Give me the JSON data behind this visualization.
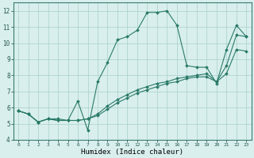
{
  "title": "",
  "xlabel": "Humidex (Indice chaleur)",
  "ylabel": "",
  "xlim": [
    -0.5,
    23.5
  ],
  "ylim": [
    4,
    12.5
  ],
  "yticks": [
    4,
    5,
    6,
    7,
    8,
    9,
    10,
    11,
    12
  ],
  "xticks": [
    0,
    1,
    2,
    3,
    4,
    5,
    6,
    7,
    8,
    9,
    10,
    11,
    12,
    13,
    14,
    15,
    16,
    17,
    18,
    19,
    20,
    21,
    22,
    23
  ],
  "line_color": "#2a7a68",
  "bg_color": "#d8efed",
  "grid_color": "#aacfca",
  "series": [
    {
      "x": [
        0,
        1,
        2,
        3,
        4,
        5,
        6,
        7,
        8,
        9,
        10,
        11,
        12,
        13,
        14,
        15,
        16,
        17,
        18,
        19,
        20,
        21,
        22,
        23
      ],
      "y": [
        5.8,
        5.6,
        5.1,
        5.3,
        5.3,
        5.2,
        6.4,
        4.6,
        7.6,
        8.8,
        10.2,
        10.4,
        10.8,
        11.9,
        11.9,
        12.0,
        11.1,
        8.6,
        8.5,
        8.5,
        7.5,
        9.6,
        11.1,
        10.4
      ]
    },
    {
      "x": [
        0,
        1,
        2,
        3,
        4,
        5,
        6,
        7,
        8,
        9,
        10,
        11,
        12,
        13,
        14,
        15,
        16,
        17,
        18,
        19,
        20,
        21,
        22,
        23
      ],
      "y": [
        5.8,
        5.6,
        5.1,
        5.3,
        5.2,
        5.2,
        5.2,
        5.3,
        5.6,
        6.1,
        6.5,
        6.8,
        7.1,
        7.3,
        7.5,
        7.6,
        7.8,
        7.9,
        8.0,
        8.1,
        7.6,
        8.6,
        10.5,
        10.4
      ]
    },
    {
      "x": [
        0,
        1,
        2,
        3,
        4,
        5,
        6,
        7,
        8,
        9,
        10,
        11,
        12,
        13,
        14,
        15,
        16,
        17,
        18,
        19,
        20,
        21,
        22,
        23
      ],
      "y": [
        5.8,
        5.6,
        5.1,
        5.3,
        5.2,
        5.2,
        5.2,
        5.3,
        5.5,
        5.9,
        6.3,
        6.6,
        6.9,
        7.1,
        7.3,
        7.5,
        7.6,
        7.8,
        7.9,
        7.9,
        7.6,
        8.1,
        9.6,
        9.5
      ]
    }
  ]
}
